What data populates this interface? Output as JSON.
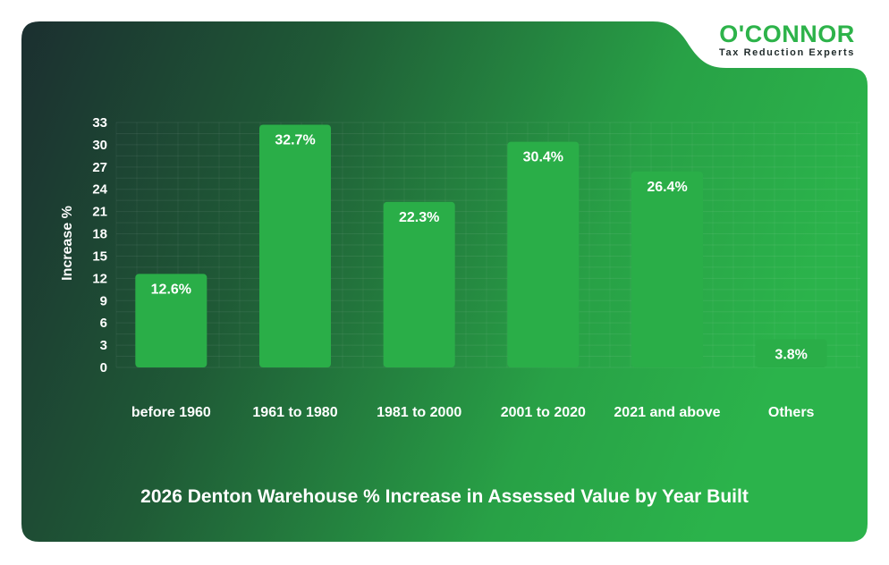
{
  "brand": {
    "name": "O'CONNOR",
    "tagline": "Tax Reduction Experts"
  },
  "colors": {
    "background_dark": "#1b3232",
    "background_light": "#2bb04a",
    "bar": "#2aae48",
    "text": "#ffffff",
    "brand": "#2db34a"
  },
  "chart_data": {
    "type": "bar",
    "title": "2026 Denton Warehouse % Increase in Assessed Value by Year Built",
    "xlabel": "",
    "ylabel": "Increase %",
    "categories": [
      "before 1960",
      "1961 to 1980",
      "1981 to 2000",
      "2001 to 2020",
      "2021 and above",
      "Others"
    ],
    "values": [
      12.6,
      32.7,
      22.3,
      30.4,
      26.4,
      3.8
    ],
    "data_labels": [
      "12.6%",
      "32.7%",
      "22.3%",
      "30.4%",
      "26.4%",
      "3.8%"
    ],
    "ylim": [
      0,
      33
    ],
    "yticks": [
      0,
      3,
      6,
      9,
      12,
      15,
      18,
      21,
      24,
      27,
      30,
      33
    ],
    "grid": true,
    "legend": false
  }
}
